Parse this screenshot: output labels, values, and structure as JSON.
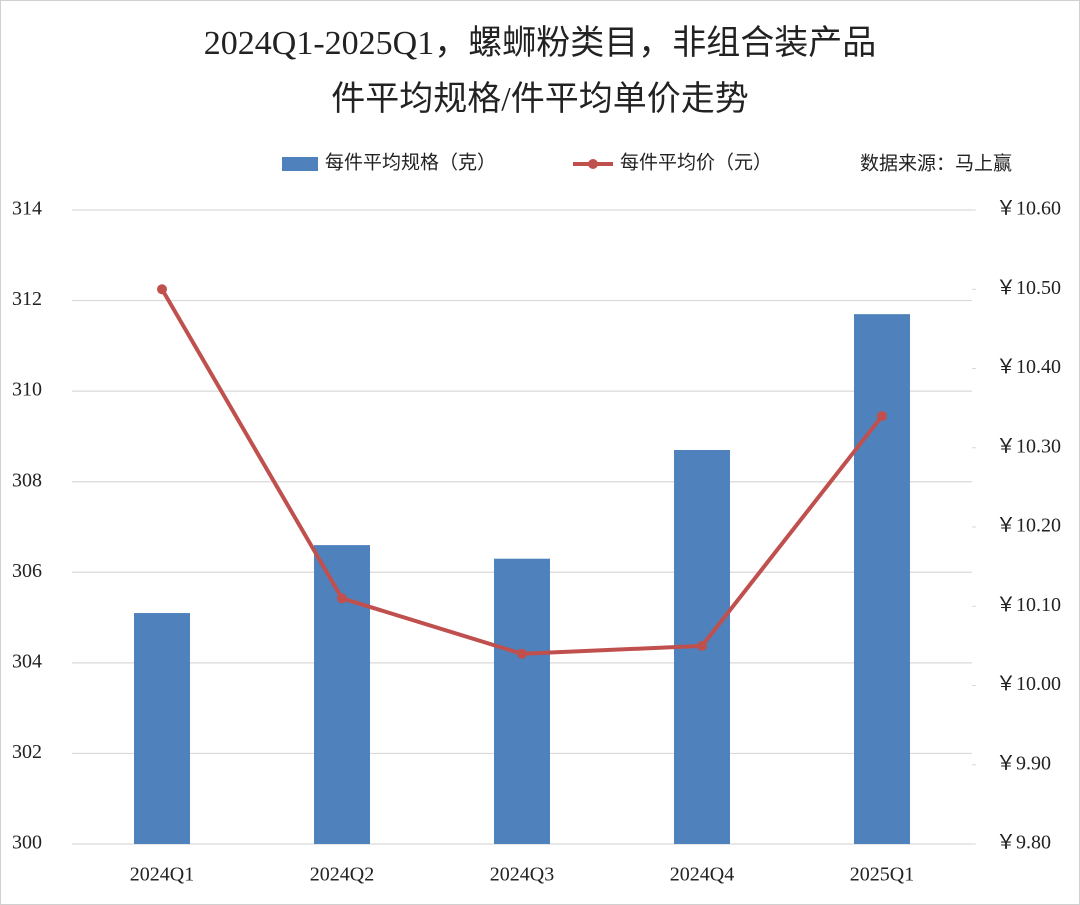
{
  "chart_data": {
    "type": "bar-line",
    "title_lines": [
      "2024Q1-2025Q1，螺蛳粉类目，非组合装产品",
      "件平均规格/件平均单价走势"
    ],
    "source": "数据来源：马上赢",
    "categories": [
      "2024Q1",
      "2024Q2",
      "2024Q3",
      "2024Q4",
      "2025Q1"
    ],
    "series": [
      {
        "name": "每件平均规格（克）",
        "type": "bar",
        "color": "#4f81bd",
        "values": [
          305.1,
          306.6,
          306.3,
          308.7,
          311.7
        ]
      },
      {
        "name": "每件平均价（元）",
        "type": "line",
        "axis": "y2",
        "color": "#c0504d",
        "values": [
          10.5,
          10.11,
          10.04,
          10.05,
          10.34
        ]
      }
    ],
    "ylim": [
      300,
      314
    ],
    "yticks": [
      300,
      302,
      304,
      306,
      308,
      310,
      312,
      314
    ],
    "y2lim": [
      9.8,
      10.6
    ],
    "y2ticks": [
      {
        "value": 9.8,
        "label": "￥9.80"
      },
      {
        "value": 9.9,
        "label": "￥9.90"
      },
      {
        "value": 10.0,
        "label": "￥10.00"
      },
      {
        "value": 10.1,
        "label": "￥10.10"
      },
      {
        "value": 10.2,
        "label": "￥10.20"
      },
      {
        "value": 10.3,
        "label": "￥10.30"
      },
      {
        "value": 10.4,
        "label": "￥10.40"
      },
      {
        "value": 10.5,
        "label": "￥10.50"
      },
      {
        "value": 10.6,
        "label": "￥10.60"
      }
    ],
    "grid": true
  }
}
